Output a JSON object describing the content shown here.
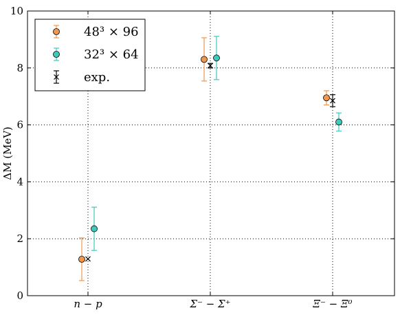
{
  "chart_data": {
    "type": "scatter",
    "ylabel": "ΔM (MeV)",
    "ylim": [
      0,
      10
    ],
    "yticks": [
      0,
      2,
      4,
      6,
      8,
      10
    ],
    "categories": [
      "n − p",
      "Σ⁻ − Σ⁺",
      "Ξ⁻ − Ξ⁰"
    ],
    "grid": true,
    "legend_position": "top-left",
    "series": [
      {
        "name": "48³ × 96",
        "color": "#f0974d",
        "marker": "circle",
        "values": [
          1.28,
          8.3,
          6.95
        ],
        "errors": [
          0.75,
          0.76,
          0.25
        ]
      },
      {
        "name": "32³ × 64",
        "color": "#3ec9bd",
        "marker": "circle",
        "values": [
          2.35,
          8.35,
          6.1
        ],
        "errors": [
          0.76,
          0.76,
          0.32
        ]
      },
      {
        "name": "exp.",
        "color": "#000000",
        "marker": "x",
        "values": [
          1.29,
          8.08,
          6.85
        ],
        "errors": [
          0.0,
          0.08,
          0.21
        ]
      }
    ]
  }
}
